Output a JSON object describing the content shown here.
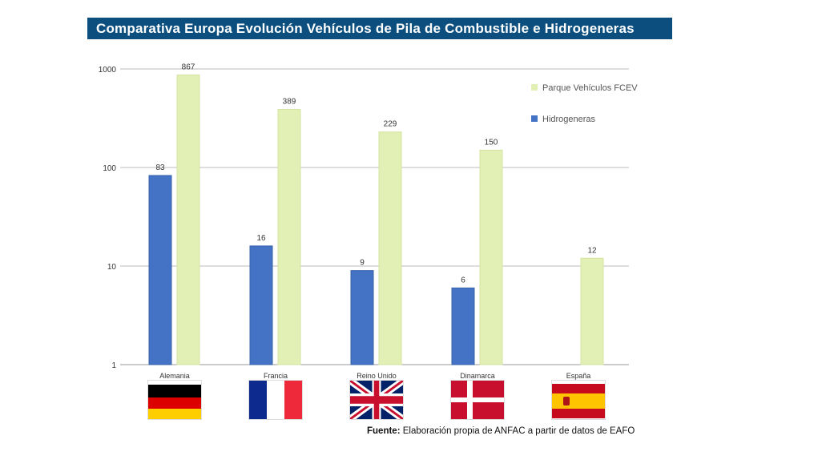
{
  "title": "Comparativa Europa Evolución Vehículos de Pila de Combustible e Hidrogeneras",
  "source": {
    "label": "Fuente:",
    "text": " Elaboración propia de ANFAC a partir de datos de EAFO"
  },
  "chart_data": {
    "type": "bar",
    "title": "Comparativa Europa Evolución Vehículos de Pila de Combustible e Hidrogeneras",
    "yscale": "log",
    "ylim": [
      1,
      1000
    ],
    "yticks": [
      "1",
      "10",
      "100",
      "1000"
    ],
    "grid": true,
    "legend": "top-right",
    "categories": [
      "Alemania",
      "Francia",
      "Reino Unido",
      "Dinamarca",
      "España"
    ],
    "series": [
      {
        "name": "Hidrogeneras",
        "color": "#4472c4",
        "values": [
          83,
          16,
          9,
          6,
          null
        ]
      },
      {
        "name": "Parque Vehículos FCEV",
        "color": "#e2efb5",
        "values": [
          867,
          389,
          229,
          150,
          12
        ]
      }
    ]
  }
}
